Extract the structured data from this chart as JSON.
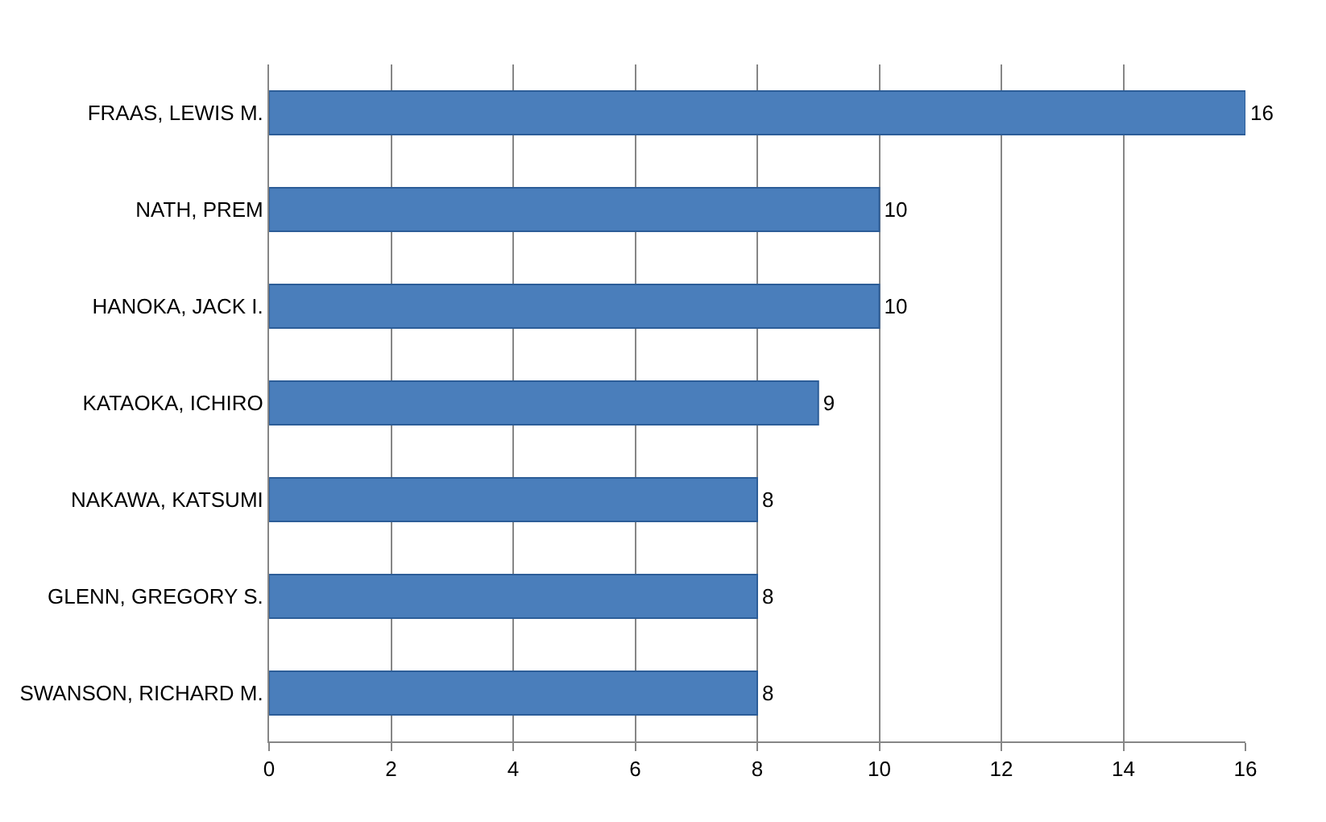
{
  "chart_data": {
    "type": "bar",
    "orientation": "horizontal",
    "categories": [
      "FRAAS, LEWIS M.",
      "NATH, PREM",
      "HANOKA, JACK I.",
      "KATAOKA, ICHIRO",
      "NAKAWA, KATSUMI",
      "GLENN, GREGORY S.",
      "SWANSON, RICHARD M."
    ],
    "values": [
      16,
      10,
      10,
      9,
      8,
      8,
      8
    ],
    "color": "#4a7ebb",
    "xlim": [
      0,
      16
    ],
    "xticks": [
      0,
      2,
      4,
      6,
      8,
      10,
      12,
      14,
      16
    ],
    "grid": "x",
    "data_labels": true,
    "legend": false
  }
}
